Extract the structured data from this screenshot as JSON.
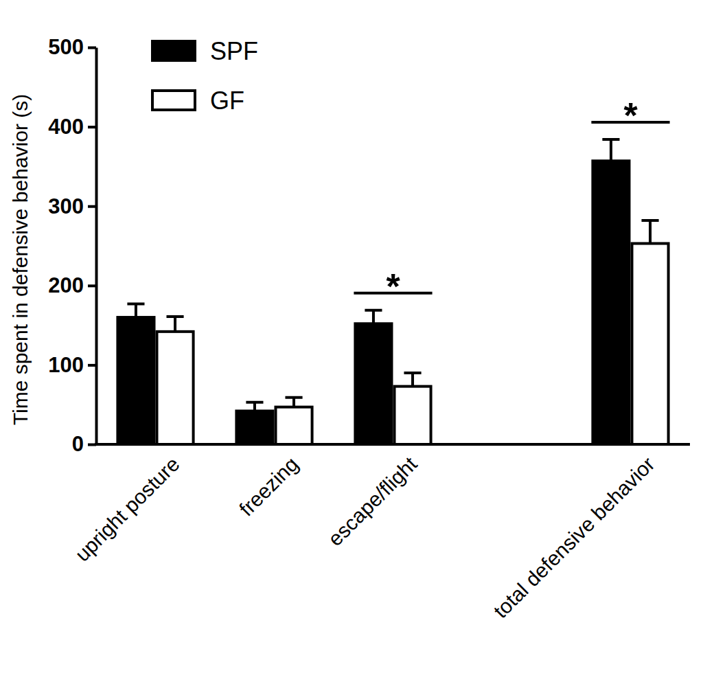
{
  "chart_data": {
    "type": "bar",
    "y_label": "Time spent in defensive behavior (s)",
    "categories": [
      "upright posture",
      "freezing",
      "escape/flight",
      null,
      "total defensive behavior"
    ],
    "series": [
      {
        "name": "SPF",
        "color": "#000000",
        "values": [
          160,
          42,
          152,
          null,
          357
        ],
        "errors": [
          17,
          11,
          17,
          null,
          27
        ]
      },
      {
        "name": "GF",
        "color": "#ffffff",
        "values": [
          142,
          47,
          73,
          null,
          253
        ],
        "errors": [
          19,
          12,
          17,
          null,
          29
        ]
      }
    ],
    "ylim": [
      0,
      500
    ],
    "yticks": [
      0,
      100,
      200,
      300,
      400,
      500
    ],
    "legend": "top-left",
    "annotations": [
      {
        "text": "*",
        "category": 2
      },
      {
        "text": "*",
        "category": 4
      }
    ]
  }
}
